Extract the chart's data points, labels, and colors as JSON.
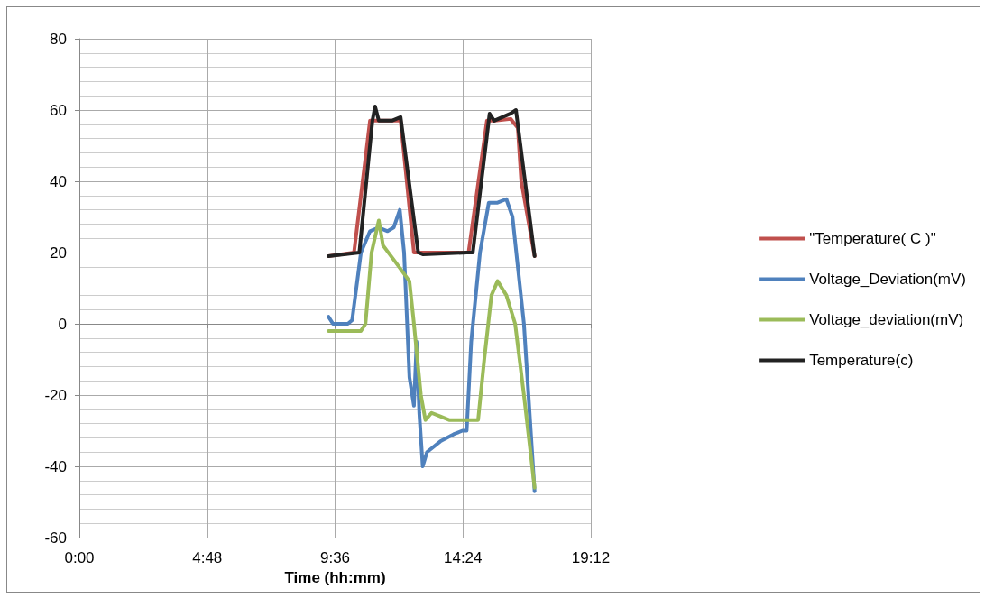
{
  "chart_data": {
    "type": "line",
    "xlabel": "Time (hh:mm)",
    "xlim": [
      0,
      19.2
    ],
    "xticks": [
      {
        "value": 0,
        "label": "0:00"
      },
      {
        "value": 4.8,
        "label": "4:48"
      },
      {
        "value": 9.6,
        "label": "9:36"
      },
      {
        "value": 14.4,
        "label": "14:24"
      },
      {
        "value": 19.2,
        "label": "19:12"
      }
    ],
    "ylim": [
      -60,
      80
    ],
    "yticks": [
      -60,
      -40,
      -20,
      0,
      20,
      40,
      60,
      80
    ],
    "grid": true,
    "legend": "right",
    "marker": "none",
    "line_style": "solid",
    "series": [
      {
        "name": "\"Temperature( C )\"",
        "color": "#c0504d",
        "x": [
          9.35,
          10.31,
          10.91,
          11.24,
          11.9,
          12.06,
          12.56,
          12.89,
          14.61,
          15.3,
          15.6,
          16.19,
          16.46,
          16.59,
          17.09
        ],
        "values": [
          19,
          20,
          57,
          57,
          57,
          57,
          20,
          20,
          20,
          57,
          57,
          57.5,
          55,
          40,
          19
        ]
      },
      {
        "name": "Voltage_Deviation(mV)",
        "color": "#4f81bd",
        "x": [
          9.35,
          9.52,
          10.08,
          10.24,
          10.57,
          10.91,
          11.24,
          11.57,
          11.8,
          12.03,
          12.19,
          12.39,
          12.56,
          12.66,
          12.76,
          12.89,
          13.05,
          13.55,
          14.05,
          14.38,
          14.54,
          14.71,
          15.04,
          15.37,
          15.7,
          16.03,
          16.26,
          16.69,
          17.09
        ],
        "values": [
          2,
          0,
          0,
          1,
          20,
          26,
          27,
          26,
          27,
          32,
          20,
          -15,
          -23,
          -5,
          -25,
          -40,
          -36,
          -33,
          -31,
          -30,
          -30,
          -5,
          20,
          34,
          34,
          35,
          30,
          0,
          -47
        ]
      },
      {
        "name": "Voltage_deviation(mV)",
        "color": "#9bbb59",
        "x": [
          9.35,
          10.57,
          10.74,
          10.97,
          11.24,
          11.4,
          11.9,
          12.39,
          12.56,
          12.82,
          12.99,
          13.22,
          13.55,
          13.88,
          14.38,
          14.97,
          15.2,
          15.47,
          15.7,
          16.03,
          16.36,
          16.69,
          17.09
        ],
        "values": [
          -2,
          -2,
          0,
          20,
          29,
          22,
          17,
          12,
          0,
          -20,
          -27,
          -25,
          -26,
          -27,
          -27,
          -27,
          -10,
          8,
          12,
          8,
          0,
          -20,
          -46
        ]
      },
      {
        "name": "Temperature(c)",
        "color": "#222222",
        "x": [
          9.35,
          10.51,
          11.0,
          11.1,
          11.24,
          11.73,
          12.06,
          12.72,
          12.89,
          14.54,
          14.77,
          15.4,
          15.57,
          16.19,
          16.39,
          17.09
        ],
        "values": [
          19,
          20,
          57,
          61,
          57,
          57,
          58,
          20,
          19.5,
          20,
          20,
          59,
          57,
          59,
          60,
          19
        ]
      }
    ]
  }
}
